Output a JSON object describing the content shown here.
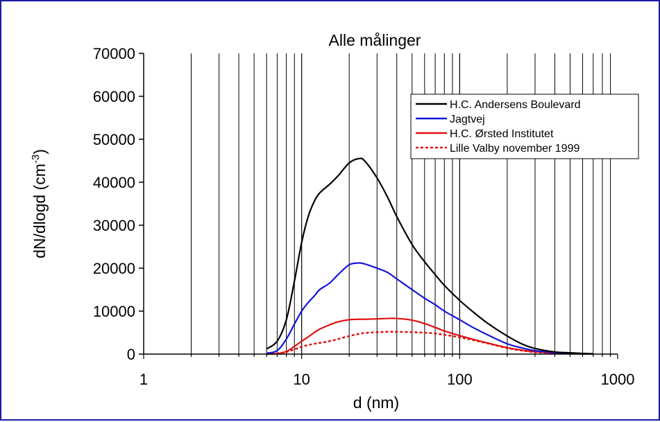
{
  "chart_data": {
    "type": "line",
    "title": "Alle målinger",
    "xlabel": "d (nm)",
    "ylabel_main": "dN/dlogd (cm",
    "ylabel_sup": "-3",
    "ylabel_close": ")",
    "x_scale": "log",
    "xlim": [
      1,
      1000
    ],
    "ylim": [
      0,
      70000
    ],
    "x_ticks": [
      1,
      10,
      100,
      1000
    ],
    "x_tick_labels": [
      "1",
      "10",
      "100",
      "1000"
    ],
    "y_ticks": [
      0,
      10000,
      20000,
      30000,
      40000,
      50000,
      60000,
      70000
    ],
    "y_tick_labels": [
      "0",
      "10000",
      "20000",
      "30000",
      "40000",
      "50000",
      "60000",
      "70000"
    ],
    "grid": "vertical minor/major lines on log x",
    "legend_position": "top-right",
    "series": [
      {
        "name": "H.C. Andersens Boulevard",
        "color": "#000000",
        "dash": "solid",
        "x": [
          6,
          7,
          8,
          9,
          10,
          11,
          12,
          13,
          15,
          17,
          20,
          23,
          25,
          30,
          35,
          40,
          50,
          60,
          70,
          80,
          100,
          120,
          150,
          200,
          250,
          300,
          400,
          500,
          600,
          700
        ],
        "y": [
          1200,
          3000,
          8000,
          17000,
          26000,
          32000,
          35500,
          37500,
          39500,
          41500,
          44500,
          45500,
          45000,
          41000,
          36500,
          32000,
          25500,
          21500,
          18500,
          16000,
          12500,
          10000,
          7200,
          4200,
          2300,
          1300,
          500,
          300,
          150,
          80
        ]
      },
      {
        "name": "Jagtvej",
        "color": "#1414d8",
        "dash": "solid",
        "x": [
          6,
          7,
          8,
          9,
          10,
          11,
          12,
          13,
          15,
          17,
          20,
          23,
          25,
          30,
          35,
          40,
          50,
          60,
          70,
          80,
          100,
          120,
          150,
          200,
          250,
          300,
          400,
          500,
          600,
          700
        ],
        "y": [
          200,
          800,
          3500,
          7000,
          10000,
          12000,
          13500,
          15000,
          16500,
          18500,
          20800,
          21200,
          21000,
          20000,
          19000,
          17500,
          15000,
          13000,
          11500,
          10000,
          8000,
          6300,
          4500,
          2400,
          1400,
          800,
          350,
          200,
          100,
          50
        ]
      },
      {
        "name": "H.C. Ørsted Institutet",
        "color": "#e01010",
        "dash": "solid",
        "x": [
          6,
          7,
          8,
          9,
          10,
          11,
          12,
          13,
          15,
          17,
          20,
          23,
          25,
          30,
          35,
          40,
          50,
          60,
          70,
          80,
          100,
          120,
          150,
          200,
          250,
          300,
          400,
          500,
          600,
          700
        ],
        "y": [
          0,
          100,
          600,
          1800,
          3000,
          4000,
          5000,
          5800,
          6800,
          7500,
          8000,
          8100,
          8100,
          8200,
          8300,
          8300,
          7900,
          7100,
          6200,
          5400,
          4300,
          3500,
          2600,
          1500,
          900,
          550,
          250,
          150,
          80,
          40
        ]
      },
      {
        "name": "Lille Valby november 1999",
        "color": "#e01010",
        "dash": "dotted",
        "x": [
          6,
          7,
          8,
          9,
          10,
          11,
          12,
          13,
          15,
          17,
          20,
          23,
          25,
          30,
          35,
          40,
          50,
          60,
          70,
          80,
          100,
          120,
          150,
          200,
          250,
          300,
          400,
          500,
          600,
          700
        ],
        "y": [
          0,
          150,
          500,
          1100,
          1700,
          2100,
          2400,
          2600,
          3000,
          3500,
          4200,
          4700,
          4900,
          5100,
          5200,
          5200,
          5100,
          5000,
          4800,
          4500,
          3900,
          3300,
          2500,
          1400,
          800,
          450,
          200,
          100,
          50,
          20
        ]
      }
    ]
  }
}
